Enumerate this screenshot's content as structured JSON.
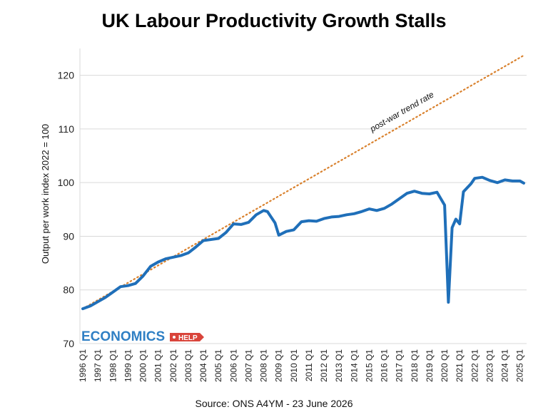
{
  "chart_data": {
    "type": "line",
    "title": "UK Labour Productivity Growth Stalls",
    "ylabel": "Output per work index 2022 = 100",
    "xlabel": "",
    "ylim": [
      70,
      125
    ],
    "yticks": [
      70,
      80,
      90,
      100,
      110,
      120
    ],
    "x_tick_labels": [
      "1996 Q1",
      "1997 Q1",
      "1998 Q1",
      "1999 Q1",
      "2000 Q1",
      "2001 Q1",
      "2002 Q1",
      "2003 Q1",
      "2004 Q1",
      "2005 Q1",
      "2006 Q1",
      "2007 Q1",
      "2008 Q1",
      "2009 Q1",
      "2010 Q1",
      "2011 Q1",
      "2012 Q1",
      "2013 Q1",
      "2014 Q1",
      "2015 Q1",
      "2016 Q1",
      "2017 Q1",
      "2018 Q1",
      "2019 Q1",
      "2020 Q1",
      "2021 Q1",
      "2022 Q1",
      "2023 Q1",
      "2024 Q1",
      "2025 Q1"
    ],
    "grid": true,
    "series": [
      {
        "color": "#1f6fb9",
        "points": [
          [
            "1996 Q1",
            76.5
          ],
          [
            "1996 Q3",
            77.0
          ],
          [
            "1997 Q1",
            77.8
          ],
          [
            "1997 Q3",
            78.6
          ],
          [
            "1998 Q1",
            79.6
          ],
          [
            "1998 Q3",
            80.6
          ],
          [
            "1999 Q1",
            80.8
          ],
          [
            "1999 Q3",
            81.2
          ],
          [
            "2000 Q1",
            82.6
          ],
          [
            "2000 Q3",
            84.4
          ],
          [
            "2001 Q1",
            85.2
          ],
          [
            "2001 Q3",
            85.8
          ],
          [
            "2002 Q1",
            86.1
          ],
          [
            "2002 Q3",
            86.4
          ],
          [
            "2003 Q1",
            86.9
          ],
          [
            "2003 Q3",
            88.0
          ],
          [
            "2004 Q1",
            89.2
          ],
          [
            "2004 Q3",
            89.4
          ],
          [
            "2005 Q1",
            89.6
          ],
          [
            "2005 Q3",
            90.7
          ],
          [
            "2006 Q1",
            92.3
          ],
          [
            "2006 Q3",
            92.2
          ],
          [
            "2007 Q1",
            92.6
          ],
          [
            "2007 Q3",
            94.0
          ],
          [
            "2008 Q1",
            94.8
          ],
          [
            "2008 Q2",
            94.6
          ],
          [
            "2008 Q4",
            92.5
          ],
          [
            "2009 Q1",
            90.2
          ],
          [
            "2009 Q3",
            90.9
          ],
          [
            "2010 Q1",
            91.2
          ],
          [
            "2010 Q3",
            92.7
          ],
          [
            "2011 Q1",
            92.9
          ],
          [
            "2011 Q3",
            92.8
          ],
          [
            "2012 Q1",
            93.3
          ],
          [
            "2012 Q3",
            93.6
          ],
          [
            "2013 Q1",
            93.7
          ],
          [
            "2013 Q3",
            94.0
          ],
          [
            "2014 Q1",
            94.2
          ],
          [
            "2014 Q3",
            94.6
          ],
          [
            "2015 Q1",
            95.1
          ],
          [
            "2015 Q3",
            94.8
          ],
          [
            "2016 Q1",
            95.2
          ],
          [
            "2016 Q3",
            96.0
          ],
          [
            "2017 Q1",
            97.0
          ],
          [
            "2017 Q3",
            98.0
          ],
          [
            "2018 Q1",
            98.4
          ],
          [
            "2018 Q3",
            98.0
          ],
          [
            "2019 Q1",
            97.9
          ],
          [
            "2019 Q3",
            98.2
          ],
          [
            "2020 Q1",
            95.8
          ],
          [
            "2020 Q2",
            77.7
          ],
          [
            "2020 Q3",
            91.6
          ],
          [
            "2020 Q4",
            93.2
          ],
          [
            "2021 Q1",
            92.3
          ],
          [
            "2021 Q2",
            98.3
          ],
          [
            "2021 Q4",
            99.8
          ],
          [
            "2022 Q1",
            100.8
          ],
          [
            "2022 Q3",
            101.0
          ],
          [
            "2023 Q1",
            100.4
          ],
          [
            "2023 Q3",
            100.0
          ],
          [
            "2024 Q1",
            100.5
          ],
          [
            "2024 Q3",
            100.3
          ],
          [
            "2025 Q1",
            100.3
          ],
          [
            "2025 Q2",
            99.9
          ]
        ]
      }
    ],
    "trend": {
      "label": "post-war trend rate",
      "color": "#d9812d",
      "style": "dotted",
      "start": [
        "1996 Q1",
        76.5
      ],
      "end": [
        "2025 Q2",
        123.7
      ]
    }
  },
  "footer": {
    "source": "Source: ONS A4YM - 23 June 2026"
  },
  "logo": {
    "brand": "ECONOMICS",
    "tag": "HELP"
  },
  "colors": {
    "line": "#1f6fb9",
    "trend": "#d9812d",
    "grid": "#d9d9d9",
    "logo_blue": "#2f7fc4",
    "logo_red": "#d9443a"
  }
}
